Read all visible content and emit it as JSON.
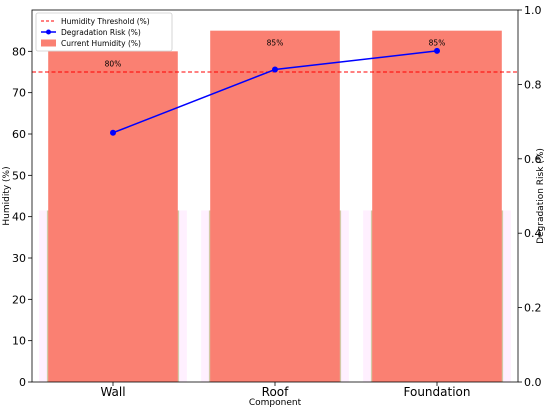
{
  "chart_data": {
    "type": "bar",
    "title": "",
    "categories": [
      "Wall",
      "Roof",
      "Foundation"
    ],
    "xlabel": "Component",
    "ylabel": "Humidity (%)",
    "ylabel_right": "Degradation Risk (%)",
    "ylim": [
      0,
      90
    ],
    "ylim_right": [
      0,
      1.0
    ],
    "yticks": [
      0,
      10,
      20,
      30,
      40,
      50,
      60,
      70,
      80
    ],
    "yticks_right": [
      "0.0",
      "0.2",
      "0.4",
      "0.6",
      "0.8",
      "1.0"
    ],
    "series": [
      {
        "name": "Current Humidity (%)",
        "type": "bar",
        "values": [
          80,
          85,
          85
        ],
        "data_labels": [
          "80%",
          "85%",
          "85%"
        ],
        "color": "#fa8072"
      },
      {
        "name": "Degradation Risk (%)",
        "type": "line",
        "axis": "right",
        "values": [
          0.67,
          0.84,
          0.89
        ],
        "color": "#0000ff"
      }
    ],
    "overlay_bars": {
      "values": [
        41.5,
        41.5,
        41.5
      ],
      "color": "#ff00ff"
    },
    "threshold": {
      "name": "Humidity Threshold (%)",
      "value": 75,
      "color": "#ff0000"
    },
    "legend": {
      "position": "top-left",
      "entries": [
        "Humidity Threshold (%)",
        "Degradation Risk (%)",
        "Current Humidity (%)"
      ]
    },
    "grid": false
  }
}
